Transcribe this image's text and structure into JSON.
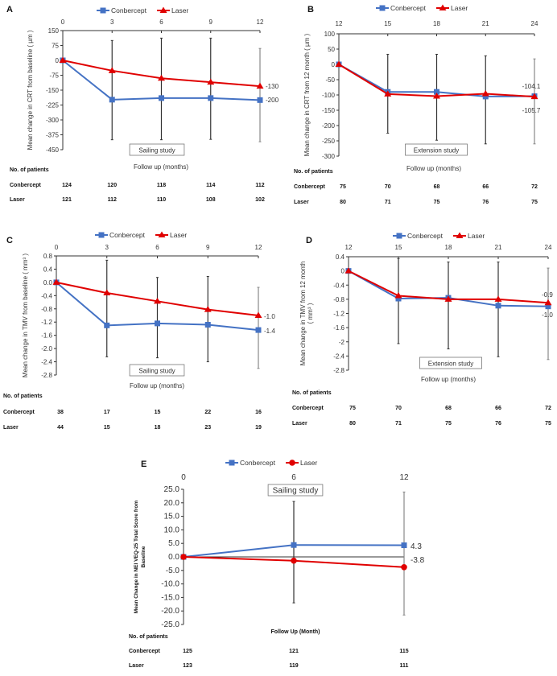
{
  "legend": {
    "conbercept": "Conbercept",
    "laser": "Laser"
  },
  "colors": {
    "conbercept": "#4472C4",
    "laser": "#E00000",
    "error": "#333333",
    "error_last": "#888888"
  },
  "patients_header": "No. of patients",
  "chart_data": [
    {
      "type": "line",
      "panel": "A",
      "title": "",
      "xlabel": "Follow up (months)",
      "ylabel": [
        "Mean change in CRT from baseline ( µm )"
      ],
      "study": "Sailing study",
      "x": [
        0,
        3,
        6,
        9,
        12
      ],
      "xtick_labels": [
        "0",
        "3",
        "6",
        "9",
        "12"
      ],
      "ylim": [
        -450,
        150
      ],
      "ytick_labels": [
        "150",
        "75",
        "0",
        "-75",
        "-150",
        "-225",
        "-300",
        "-375",
        "-450"
      ],
      "series": [
        {
          "name": "Conbercept",
          "marker": "square",
          "values": [
            0,
            -198,
            -190,
            -190,
            -200
          ],
          "end_label": "-200"
        },
        {
          "name": "Laser",
          "marker": "triangle",
          "values": [
            0,
            -52,
            -90,
            -110,
            -130
          ],
          "end_label": "-130"
        }
      ],
      "error_bars": [
        null,
        [
          100,
          -400
        ],
        [
          112,
          -400
        ],
        [
          112,
          -398
        ],
        [
          60,
          -410
        ]
      ],
      "patients": {
        "Conbercept": [
          "124",
          "120",
          "118",
          "114",
          "112"
        ],
        "Laser": [
          "121",
          "112",
          "110",
          "108",
          "102"
        ]
      }
    },
    {
      "type": "line",
      "panel": "B",
      "title": "",
      "xlabel": "Follow up (months)",
      "ylabel": [
        "Mean change in CRT from 12 month ( µm )"
      ],
      "study": "Extension study",
      "x": [
        12,
        15,
        18,
        21,
        24
      ],
      "xtick_labels": [
        "12",
        "15",
        "18",
        "21",
        "24"
      ],
      "ylim": [
        -300,
        100
      ],
      "ytick_labels": [
        "100",
        "50",
        "0",
        "-50",
        "-100",
        "-150",
        "-200",
        "-250",
        "-300"
      ],
      "series": [
        {
          "name": "Conbercept",
          "marker": "square",
          "values": [
            0,
            -90,
            -90,
            -105,
            -104.1
          ],
          "end_label": "-104.1"
        },
        {
          "name": "Laser",
          "marker": "triangle",
          "values": [
            0,
            -97,
            -104,
            -96,
            -105.7
          ],
          "end_label": "-105.7"
        }
      ],
      "error_bars": [
        null,
        [
          33,
          -225
        ],
        [
          33,
          -248
        ],
        [
          28,
          -260
        ],
        [
          18,
          -260
        ]
      ],
      "patients": {
        "Conbercept": [
          "75",
          "70",
          "68",
          "66",
          "72"
        ],
        "Laser": [
          "80",
          "71",
          "75",
          "76",
          "75"
        ]
      }
    },
    {
      "type": "line",
      "panel": "C",
      "title": "",
      "xlabel": "Follow up (months)",
      "ylabel": [
        "Mean change in TMV from baseline ( mm³ )"
      ],
      "study": "Sailing study",
      "x": [
        0,
        3,
        6,
        9,
        12
      ],
      "xtick_labels": [
        "0",
        "3",
        "6",
        "9",
        "12"
      ],
      "ylim": [
        -2.8,
        0.8
      ],
      "ytick_labels": [
        "0.8",
        "0.4",
        "0.0",
        "-0.4",
        "-0.8",
        "-1.2",
        "-1.6",
        "-2.0",
        "-2.4",
        "-2.8"
      ],
      "series": [
        {
          "name": "Conbercept",
          "marker": "square",
          "values": [
            0,
            -1.3,
            -1.24,
            -1.28,
            -1.44
          ],
          "end_label": "-1.4"
        },
        {
          "name": "Laser",
          "marker": "triangle",
          "values": [
            0,
            -0.32,
            -0.57,
            -0.82,
            -1.0
          ],
          "end_label": "-1.0"
        }
      ],
      "error_bars": [
        null,
        [
          0.67,
          -2.25
        ],
        [
          0.15,
          -2.28
        ],
        [
          0.18,
          -2.4
        ],
        [
          -0.15,
          -2.6
        ]
      ],
      "patients": {
        "Conbercept": [
          "38",
          "17",
          "15",
          "22",
          "16"
        ],
        "Laser": [
          "44",
          "15",
          "18",
          "23",
          "19"
        ]
      }
    },
    {
      "type": "line",
      "panel": "D",
      "title": "",
      "xlabel": "Follow up (months)",
      "ylabel": [
        "Mean change in TMV from 12 month",
        "( mm³ )"
      ],
      "study": "Extension study",
      "x": [
        12,
        15,
        18,
        21,
        24
      ],
      "xtick_labels": [
        "12",
        "15",
        "18",
        "21",
        "24"
      ],
      "ylim": [
        -2.8,
        0.4
      ],
      "ytick_labels": [
        "0.4",
        "0",
        "-0.4",
        "-0.8",
        "-1.2",
        "-1.6",
        "-2",
        "-2.4",
        "-2.8"
      ],
      "series": [
        {
          "name": "Conbercept",
          "marker": "square",
          "values": [
            0,
            -0.78,
            -0.76,
            -0.98,
            -1.0
          ],
          "end_label": "-1.0"
        },
        {
          "name": "Laser",
          "marker": "triangle",
          "values": [
            0,
            -0.7,
            -0.8,
            -0.8,
            -0.9
          ],
          "end_label": "-0.9"
        }
      ],
      "error_bars": [
        null,
        [
          0.35,
          -2.05
        ],
        [
          0.25,
          -2.2
        ],
        [
          0.25,
          -2.42
        ],
        [
          0.08,
          -2.5
        ]
      ],
      "patients": {
        "Conbercept": [
          "75",
          "70",
          "68",
          "66",
          "72"
        ],
        "Laser": [
          "80",
          "71",
          "75",
          "76",
          "75"
        ]
      }
    },
    {
      "type": "line",
      "panel": "E",
      "title": "",
      "xlabel": "Follow Up (Month)",
      "ylabel": [
        "Mean Change in NEI VEQ-25 Total Score from",
        "Baseline"
      ],
      "study": "Sailing study",
      "x": [
        0,
        6,
        12
      ],
      "xtick_labels": [
        "0",
        "6",
        "12"
      ],
      "ylim": [
        -25,
        25
      ],
      "ytick_labels": [
        "25.0",
        "20.0",
        "15.0",
        "10.0",
        "5.0",
        "0.0",
        "-5.0",
        "-10.0",
        "-15.0",
        "-20.0",
        "-25.0"
      ],
      "series": [
        {
          "name": "Conbercept",
          "marker": "square",
          "values": [
            0,
            4.4,
            4.3
          ],
          "end_label": "4.3"
        },
        {
          "name": "Laser",
          "marker": "circle",
          "values": [
            0,
            -1.4,
            -3.8
          ],
          "end_label": "-3.8"
        }
      ],
      "error_bars": [
        null,
        [
          20.5,
          -17
        ],
        [
          24,
          -21.5
        ]
      ],
      "patients": {
        "Conbercept": [
          "125",
          "121",
          "115"
        ],
        "Laser": [
          "123",
          "119",
          "111"
        ]
      }
    }
  ]
}
